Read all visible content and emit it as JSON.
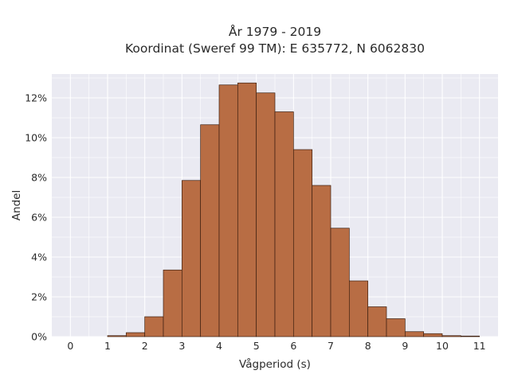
{
  "chart_data": {
    "type": "bar",
    "title_line1": "År 1979 - 2019",
    "title_line2": "Koordinat (Sweref 99 TM): E 635772, N 6062830",
    "xlabel": "Vågperiod (s)",
    "ylabel": "Andel",
    "xlim": [
      -0.5,
      11.5
    ],
    "ylim": [
      0,
      13.2
    ],
    "x_ticks": [
      "0",
      "1",
      "2",
      "3",
      "4",
      "5",
      "6",
      "7",
      "8",
      "9",
      "10",
      "11"
    ],
    "y_ticks": [
      "0%",
      "2%",
      "4%",
      "6%",
      "8%",
      "10%",
      "12%"
    ],
    "bin_width": 0.5,
    "bins": [
      {
        "x0": 1.0,
        "value": 0.05
      },
      {
        "x0": 1.5,
        "value": 0.2
      },
      {
        "x0": 2.0,
        "value": 1.0
      },
      {
        "x0": 2.5,
        "value": 3.35
      },
      {
        "x0": 3.0,
        "value": 7.85
      },
      {
        "x0": 3.5,
        "value": 10.65
      },
      {
        "x0": 4.0,
        "value": 12.65
      },
      {
        "x0": 4.5,
        "value": 12.75
      },
      {
        "x0": 5.0,
        "value": 12.25
      },
      {
        "x0": 5.5,
        "value": 11.3
      },
      {
        "x0": 6.0,
        "value": 9.4
      },
      {
        "x0": 6.5,
        "value": 7.6
      },
      {
        "x0": 7.0,
        "value": 5.45
      },
      {
        "x0": 7.5,
        "value": 2.8
      },
      {
        "x0": 8.0,
        "value": 1.5
      },
      {
        "x0": 8.5,
        "value": 0.9
      },
      {
        "x0": 9.0,
        "value": 0.25
      },
      {
        "x0": 9.5,
        "value": 0.15
      },
      {
        "x0": 10.0,
        "value": 0.05
      },
      {
        "x0": 10.5,
        "value": 0.03
      }
    ],
    "colors": {
      "bar_fill": "#b86d44",
      "bar_edge": "#3d1f10",
      "plot_bg": "#eaeaf2",
      "grid": "#ffffff"
    },
    "grid": true,
    "legend": "none"
  }
}
